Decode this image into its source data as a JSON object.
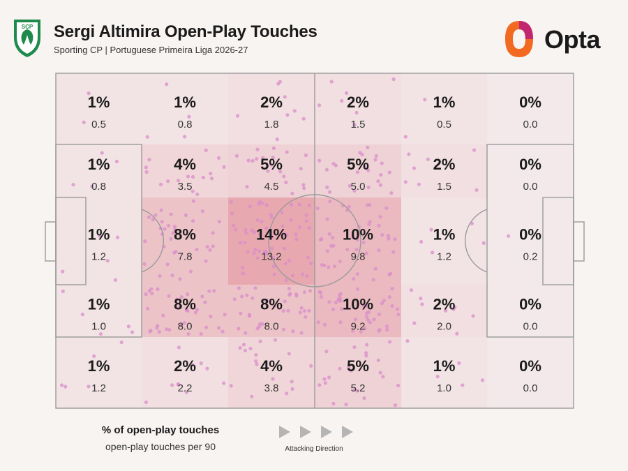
{
  "header": {
    "title": "Sergi Altimira Open-Play Touches",
    "subtitle": "Sporting CP | Portuguese Primeira Liga 2026-27",
    "club_badge_text": "SCP",
    "brand_name": "Opta"
  },
  "legend": {
    "pct_label": "% of open-play touches",
    "per90_label": "open-play touches per 90",
    "direction_label": "Attacking Direction"
  },
  "colors": {
    "background": "#f7f4f2",
    "zone_base": "#f3e9ea",
    "zone_heat": "#e07f8c",
    "dot": "#d98dc9",
    "pitch_line": "#9a9a9a",
    "badge_green": "#1f8a4c",
    "brand_orange": "#f26a21",
    "brand_magenta": "#c2266f"
  },
  "chart_data": {
    "type": "heatmap",
    "title": "Sergi Altimira Open-Play Touches",
    "x_zones": 6,
    "y_zones": 5,
    "cells": [
      [
        {
          "pct": "1%",
          "per90": "0.5"
        },
        {
          "pct": "1%",
          "per90": "0.8"
        },
        {
          "pct": "2%",
          "per90": "1.8"
        },
        {
          "pct": "2%",
          "per90": "1.5"
        },
        {
          "pct": "1%",
          "per90": "0.5"
        },
        {
          "pct": "0%",
          "per90": "0.0"
        }
      ],
      [
        {
          "pct": "1%",
          "per90": "0.8"
        },
        {
          "pct": "4%",
          "per90": "3.5"
        },
        {
          "pct": "5%",
          "per90": "4.5"
        },
        {
          "pct": "5%",
          "per90": "5.0"
        },
        {
          "pct": "2%",
          "per90": "1.5"
        },
        {
          "pct": "0%",
          "per90": "0.0"
        }
      ],
      [
        {
          "pct": "1%",
          "per90": "1.2"
        },
        {
          "pct": "8%",
          "per90": "7.8"
        },
        {
          "pct": "14%",
          "per90": "13.2"
        },
        {
          "pct": "10%",
          "per90": "9.8"
        },
        {
          "pct": "1%",
          "per90": "1.2"
        },
        {
          "pct": "0%",
          "per90": "0.2"
        }
      ],
      [
        {
          "pct": "1%",
          "per90": "1.0"
        },
        {
          "pct": "8%",
          "per90": "8.0"
        },
        {
          "pct": "8%",
          "per90": "8.0"
        },
        {
          "pct": "10%",
          "per90": "9.2"
        },
        {
          "pct": "2%",
          "per90": "2.0"
        },
        {
          "pct": "0%",
          "per90": "0.0"
        }
      ],
      [
        {
          "pct": "1%",
          "per90": "1.2"
        },
        {
          "pct": "2%",
          "per90": "2.2"
        },
        {
          "pct": "4%",
          "per90": "3.8"
        },
        {
          "pct": "5%",
          "per90": "5.2"
        },
        {
          "pct": "1%",
          "per90": "1.0"
        },
        {
          "pct": "0%",
          "per90": "0.0"
        }
      ]
    ]
  }
}
